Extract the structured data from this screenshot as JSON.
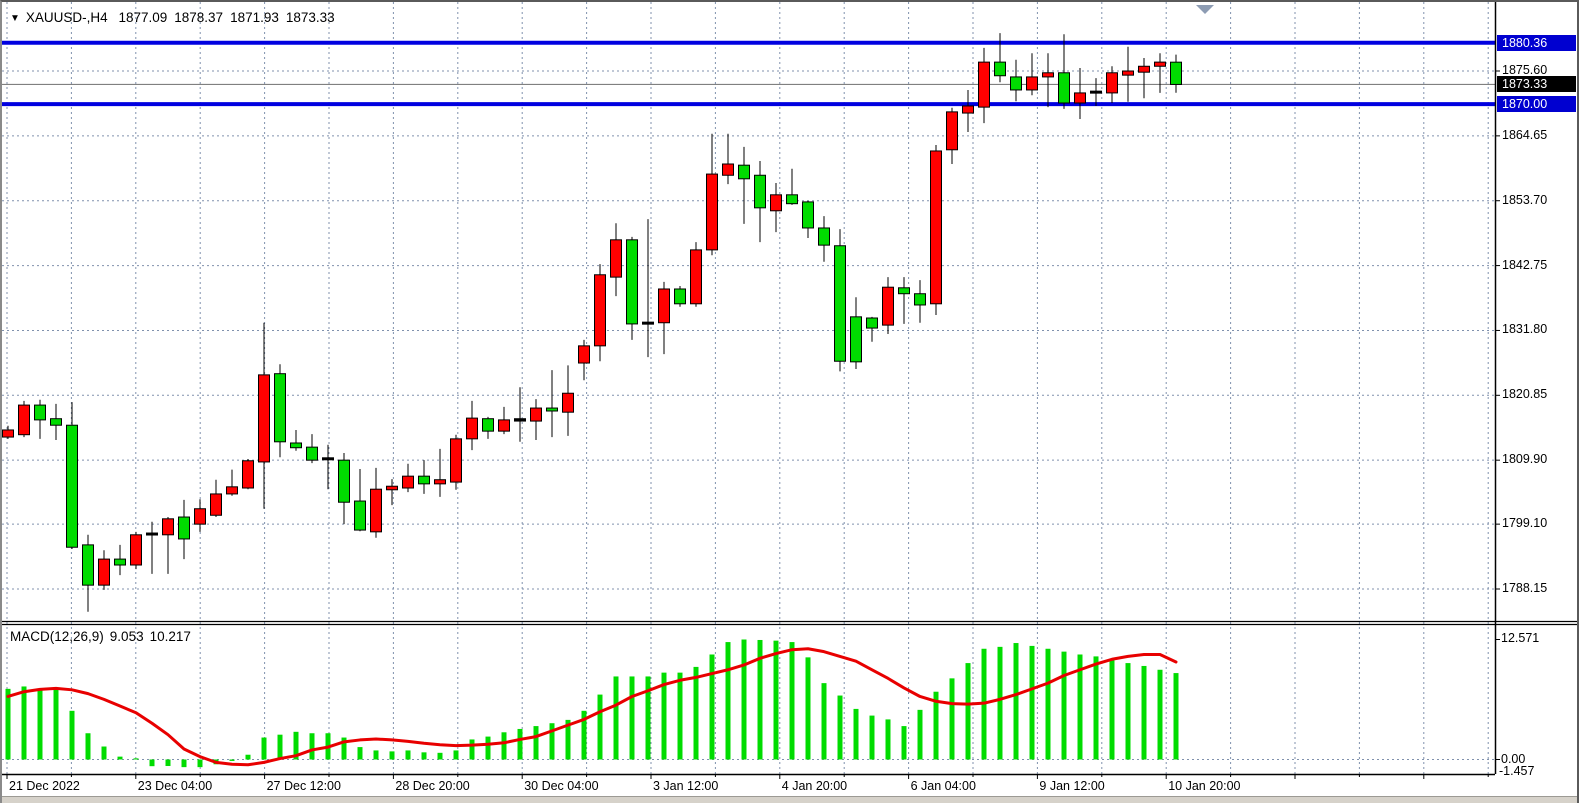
{
  "header": {
    "symbol_timeframe": "XAUUSD-,H4",
    "open": "1877.09",
    "high": "1878.37",
    "low": "1871.93",
    "close": "1873.33"
  },
  "levels": {
    "resistance_label": "1880.36",
    "resistance": 1880.36,
    "current_label": "1873.33",
    "current": 1873.33,
    "support_label": "1870.00",
    "support": 1870.0
  },
  "macd": {
    "label": "MACD(12,26,9)",
    "macd_value": "9.053",
    "signal_value": "10.217",
    "scale_max_label": "12.571",
    "scale_max": 12.571,
    "zero_label": "0.00",
    "scale_min_label": "-1.457",
    "scale_min": -1.457
  },
  "y_axis": {
    "ticks": [
      {
        "label": "1875.60",
        "price": 1875.6
      },
      {
        "label": "1864.65",
        "price": 1864.65
      },
      {
        "label": "1853.70",
        "price": 1853.7
      },
      {
        "label": "1842.75",
        "price": 1842.75
      },
      {
        "label": "1831.80",
        "price": 1831.8
      },
      {
        "label": "1820.85",
        "price": 1820.85
      },
      {
        "label": "1809.90",
        "price": 1809.9
      },
      {
        "label": "1799.10",
        "price": 1799.1
      },
      {
        "label": "1788.15",
        "price": 1788.15
      }
    ]
  },
  "x_axis": {
    "labels": [
      {
        "label": "21 Dec 2022",
        "gridline": 0
      },
      {
        "label": "23 Dec 04:00",
        "gridline": 2
      },
      {
        "label": "27 Dec 12:00",
        "gridline": 4
      },
      {
        "label": "28 Dec 20:00",
        "gridline": 6
      },
      {
        "label": "30 Dec 04:00",
        "gridline": 8
      },
      {
        "label": "3 Jan 12:00",
        "gridline": 10
      },
      {
        "label": "4 Jan 20:00",
        "gridline": 12
      },
      {
        "label": "6 Jan 04:00",
        "gridline": 14
      },
      {
        "label": "9 Jan 12:00",
        "gridline": 16
      },
      {
        "label": "10 Jan 20:00",
        "gridline": 18
      }
    ],
    "gridline_count": 24
  },
  "colors": {
    "bull": "#ff0000",
    "bear": "#00dc00",
    "doji": "#000000",
    "grid": "#8091ad",
    "level_line": "#0000e0",
    "current_line": "#808080",
    "signal": "#e80000",
    "histogram": "#00dc00",
    "tag_blue_bg": "#0000d0",
    "tag_black_bg": "#000000",
    "axis_line": "#000000"
  },
  "chart_data": {
    "type": "candlestick_with_macd",
    "title": "XAUUSD- H4",
    "note": "red candles = bullish (close>open), green candles = bearish; dir u=up, d=down, x=doji",
    "ylim": [
      1784,
      1884
    ],
    "macd_ylim": [
      -1.457,
      12.571
    ],
    "candles": [
      [
        1813.8,
        1815.7,
        1813.5,
        1815.0,
        "u"
      ],
      [
        1814.2,
        1819.9,
        1813.8,
        1819.2,
        "u"
      ],
      [
        1819.2,
        1820.1,
        1813.5,
        1816.7,
        "d"
      ],
      [
        1816.9,
        1819.4,
        1813.3,
        1815.8,
        "d"
      ],
      [
        1815.8,
        1819.7,
        1794.9,
        1795.2,
        "d"
      ],
      [
        1795.6,
        1797.3,
        1784.3,
        1788.8,
        "d"
      ],
      [
        1788.8,
        1794.7,
        1788.0,
        1793.2,
        "u"
      ],
      [
        1793.2,
        1795.6,
        1790.5,
        1792.2,
        "d"
      ],
      [
        1792.2,
        1797.8,
        1791.5,
        1797.3,
        "u"
      ],
      [
        1797.3,
        1799.5,
        1790.7,
        1797.6,
        "x"
      ],
      [
        1797.3,
        1800.3,
        1790.7,
        1800.0,
        "u"
      ],
      [
        1800.3,
        1803.2,
        1793.2,
        1796.6,
        "d"
      ],
      [
        1799.1,
        1803.3,
        1797.8,
        1801.7,
        "u"
      ],
      [
        1800.6,
        1806.6,
        1800.3,
        1804.2,
        "u"
      ],
      [
        1804.2,
        1808.3,
        1803.9,
        1805.4,
        "u"
      ],
      [
        1805.2,
        1810.1,
        1805.0,
        1809.8,
        "u"
      ],
      [
        1809.6,
        1833.1,
        1801.7,
        1824.3,
        "u"
      ],
      [
        1824.5,
        1826.1,
        1810.4,
        1813.0,
        "d"
      ],
      [
        1812.8,
        1815.0,
        1811.5,
        1812.0,
        "d"
      ],
      [
        1812.1,
        1814.3,
        1809.4,
        1809.9,
        "d"
      ],
      [
        1810.3,
        1812.5,
        1805.0,
        1810.0,
        "x"
      ],
      [
        1809.9,
        1811.1,
        1799.1,
        1802.8,
        "d"
      ],
      [
        1803.0,
        1808.4,
        1797.9,
        1798.1,
        "d"
      ],
      [
        1797.8,
        1808.6,
        1796.8,
        1805.0,
        "u"
      ],
      [
        1804.9,
        1806.7,
        1802.3,
        1805.5,
        "u"
      ],
      [
        1805.2,
        1809.3,
        1804.5,
        1807.2,
        "u"
      ],
      [
        1807.2,
        1809.9,
        1804.2,
        1805.9,
        "d"
      ],
      [
        1805.9,
        1811.8,
        1803.7,
        1806.6,
        "u"
      ],
      [
        1806.2,
        1814.2,
        1804.9,
        1813.5,
        "u"
      ],
      [
        1813.5,
        1819.9,
        1811.6,
        1817.0,
        "u"
      ],
      [
        1816.9,
        1817.2,
        1813.5,
        1814.8,
        "d"
      ],
      [
        1814.8,
        1818.9,
        1814.3,
        1816.7,
        "u"
      ],
      [
        1816.5,
        1822.2,
        1813.0,
        1816.9,
        "x"
      ],
      [
        1816.5,
        1820.2,
        1813.3,
        1818.7,
        "u"
      ],
      [
        1818.7,
        1825.1,
        1813.8,
        1818.2,
        "d"
      ],
      [
        1818.0,
        1825.9,
        1814.0,
        1821.2,
        "u"
      ],
      [
        1826.3,
        1830.2,
        1823.4,
        1829.2,
        "u"
      ],
      [
        1829.2,
        1843.0,
        1826.6,
        1841.2,
        "u"
      ],
      [
        1840.8,
        1849.9,
        1837.6,
        1847.1,
        "u"
      ],
      [
        1847.1,
        1847.6,
        1830.2,
        1832.9,
        "d"
      ],
      [
        1832.9,
        1850.6,
        1827.3,
        1833.2,
        "x"
      ],
      [
        1833.1,
        1840.0,
        1827.8,
        1838.8,
        "u"
      ],
      [
        1838.8,
        1839.3,
        1835.8,
        1836.3,
        "d"
      ],
      [
        1836.3,
        1846.7,
        1835.8,
        1845.4,
        "u"
      ],
      [
        1845.4,
        1865.0,
        1844.5,
        1858.2,
        "u"
      ],
      [
        1858.0,
        1865.0,
        1856.5,
        1859.9,
        "u"
      ],
      [
        1859.7,
        1862.8,
        1849.8,
        1857.4,
        "d"
      ],
      [
        1858.0,
        1860.4,
        1846.7,
        1852.5,
        "d"
      ],
      [
        1852.0,
        1856.7,
        1848.4,
        1854.7,
        "u"
      ],
      [
        1854.7,
        1859.1,
        1853.0,
        1853.2,
        "d"
      ],
      [
        1853.5,
        1853.7,
        1847.4,
        1849.1,
        "d"
      ],
      [
        1849.1,
        1851.1,
        1843.4,
        1846.2,
        "d"
      ],
      [
        1846.1,
        1848.9,
        1824.9,
        1826.6,
        "d"
      ],
      [
        1834.1,
        1837.4,
        1825.3,
        1826.5,
        "d"
      ],
      [
        1833.9,
        1834.1,
        1829.9,
        1832.2,
        "d"
      ],
      [
        1832.7,
        1840.8,
        1831.2,
        1839.1,
        "u"
      ],
      [
        1839.0,
        1840.8,
        1832.9,
        1838.0,
        "d"
      ],
      [
        1838.0,
        1840.3,
        1833.1,
        1836.1,
        "d"
      ],
      [
        1836.3,
        1863.1,
        1834.4,
        1862.1,
        "u"
      ],
      [
        1862.3,
        1869.4,
        1859.9,
        1868.7,
        "u"
      ],
      [
        1868.5,
        1872.4,
        1865.3,
        1869.7,
        "u"
      ],
      [
        1869.5,
        1879.5,
        1866.8,
        1877.1,
        "u"
      ],
      [
        1877.1,
        1882.0,
        1873.7,
        1874.8,
        "d"
      ],
      [
        1874.6,
        1877.5,
        1870.5,
        1872.4,
        "d"
      ],
      [
        1872.4,
        1878.6,
        1871.5,
        1874.6,
        "u"
      ],
      [
        1874.6,
        1878.6,
        1869.5,
        1875.3,
        "u"
      ],
      [
        1875.3,
        1881.8,
        1869.2,
        1870.2,
        "d"
      ],
      [
        1870.2,
        1876.1,
        1867.5,
        1871.9,
        "u"
      ],
      [
        1871.9,
        1874.4,
        1869.7,
        1872.2,
        "x"
      ],
      [
        1871.9,
        1876.4,
        1870.2,
        1875.3,
        "u"
      ],
      [
        1874.9,
        1879.7,
        1870.4,
        1875.6,
        "u"
      ],
      [
        1875.4,
        1877.8,
        1871.0,
        1876.4,
        "u"
      ],
      [
        1876.4,
        1878.6,
        1871.9,
        1877.1,
        "u"
      ],
      [
        1877.09,
        1878.37,
        1871.93,
        1873.33,
        "d"
      ]
    ],
    "macd_histogram": [
      7.4,
      7.65,
      7.4,
      7.3,
      5.1,
      2.75,
      1.36,
      0.3,
      0.12,
      -0.7,
      -0.68,
      -0.8,
      -0.8,
      -0.5,
      -0.15,
      0.5,
      2.3,
      2.6,
      2.9,
      2.75,
      2.75,
      2.3,
      1.3,
      0.95,
      0.85,
      0.95,
      0.75,
      0.7,
      0.95,
      2.1,
      2.4,
      2.85,
      3.2,
      3.5,
      3.8,
      4.15,
      5.1,
      6.8,
      8.7,
      8.7,
      8.7,
      9.1,
      9.1,
      9.7,
      11.0,
      12.3,
      12.571,
      12.52,
      12.45,
      12.3,
      10.7,
      8.0,
      6.7,
      5.3,
      4.6,
      4.2,
      3.5,
      5.2,
      7.1,
      8.5,
      10.1,
      11.6,
      11.8,
      12.2,
      11.9,
      11.6,
      11.3,
      11.0,
      10.8,
      10.4,
      10.1,
      9.8,
      9.4,
      9.053
    ],
    "macd_signal": [
      6.6,
      7.1,
      7.35,
      7.45,
      7.3,
      6.9,
      6.3,
      5.6,
      4.9,
      3.8,
      2.6,
      1.1,
      0.3,
      -0.3,
      -0.5,
      -0.55,
      -0.3,
      0.1,
      0.4,
      1.0,
      1.3,
      1.85,
      2.05,
      2.15,
      2.05,
      1.9,
      1.7,
      1.55,
      1.45,
      1.5,
      1.6,
      1.75,
      2.1,
      2.4,
      3.0,
      3.6,
      4.2,
      5.0,
      5.7,
      6.6,
      7.2,
      7.85,
      8.3,
      8.6,
      9.0,
      9.4,
      9.9,
      10.6,
      11.1,
      11.5,
      11.6,
      11.3,
      10.8,
      10.3,
      9.4,
      8.5,
      7.5,
      6.6,
      6.1,
      5.85,
      5.8,
      5.9,
      6.3,
      6.8,
      7.4,
      8.0,
      8.8,
      9.4,
      10.0,
      10.5,
      10.8,
      11.0,
      11.0,
      10.217
    ]
  }
}
